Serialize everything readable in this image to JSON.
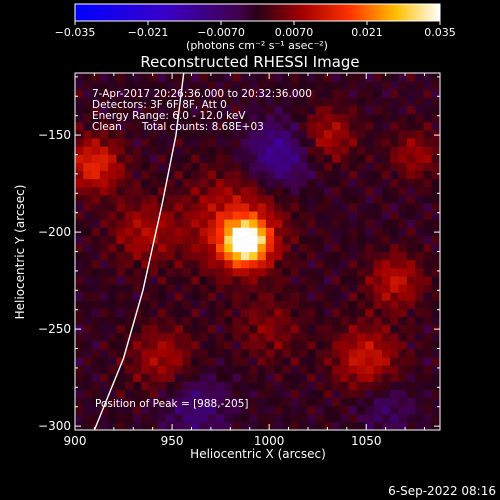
{
  "chart_data": {
    "type": "heatmap",
    "title": "Reconstructed RHESSI Image",
    "xlabel": "Heliocentric X (arcsec)",
    "ylabel": "Heliocentric Y (arcsec)",
    "xlim": [
      900,
      1088
    ],
    "ylim": [
      -302,
      -118
    ],
    "x_ticks": [
      900,
      950,
      1000,
      1050
    ],
    "y_ticks": [
      -150,
      -200,
      -250,
      -300
    ],
    "x_tick_labels": [
      "900",
      "950",
      "1000",
      "1050"
    ],
    "y_tick_labels": [
      "−150",
      "−200",
      "−250",
      "−300"
    ],
    "colorbar": {
      "range": [
        -0.035,
        0.035
      ],
      "ticks": [
        -0.035,
        -0.021,
        -0.007,
        0.007,
        0.021,
        0.035
      ],
      "tick_labels": [
        "−0.035",
        "−0.021",
        "−0.0070",
        "0.0070",
        "0.021",
        "0.035"
      ],
      "unit_label": "(photons cm⁻² s⁻¹ asec⁻²)",
      "colormap": "blue-purple-red-yellow-white"
    },
    "annotations": {
      "line1": "7-Apr-2017 20:26:36.000 to 20:32:36.000",
      "line2": "Detectors: 3F 6F 8F, Att 0",
      "line3": "Energy Range: 6.0 - 12.0 keV",
      "line4": "Clean      Total counts: 8.68E+03",
      "peak": "Position of Peak = [988,-205]"
    },
    "peak_position": [
      988,
      -205
    ],
    "peak_value": 0.035,
    "limb_points": [
      [
        910,
        -302
      ],
      [
        925,
        -265
      ],
      [
        935,
        -230
      ],
      [
        945,
        -185
      ],
      [
        952,
        -150
      ],
      [
        956,
        -118
      ]
    ],
    "features": [
      {
        "x": 988,
        "y": -205,
        "amp": 0.035,
        "sigma": 8
      },
      {
        "x": 982,
        "y": -195,
        "amp": 0.012,
        "sigma": 18
      },
      {
        "x": 910,
        "y": -165,
        "amp": 0.015,
        "sigma": 10
      },
      {
        "x": 935,
        "y": -200,
        "amp": 0.009,
        "sigma": 12
      },
      {
        "x": 1065,
        "y": -225,
        "amp": 0.011,
        "sigma": 10
      },
      {
        "x": 1050,
        "y": -265,
        "amp": 0.012,
        "sigma": 12
      },
      {
        "x": 1030,
        "y": -150,
        "amp": 0.01,
        "sigma": 10
      },
      {
        "x": 1075,
        "y": -160,
        "amp": 0.008,
        "sigma": 9
      },
      {
        "x": 945,
        "y": -265,
        "amp": 0.009,
        "sigma": 12
      },
      {
        "x": 1000,
        "y": -250,
        "amp": 0.006,
        "sigma": 12
      },
      {
        "x": 1005,
        "y": -160,
        "amp": -0.012,
        "sigma": 12
      },
      {
        "x": 962,
        "y": -290,
        "amp": -0.008,
        "sigma": 12
      },
      {
        "x": 1060,
        "y": -290,
        "amp": -0.006,
        "sigma": 10
      }
    ]
  },
  "footer": {
    "date": "6-Sep-2022 08:16"
  }
}
